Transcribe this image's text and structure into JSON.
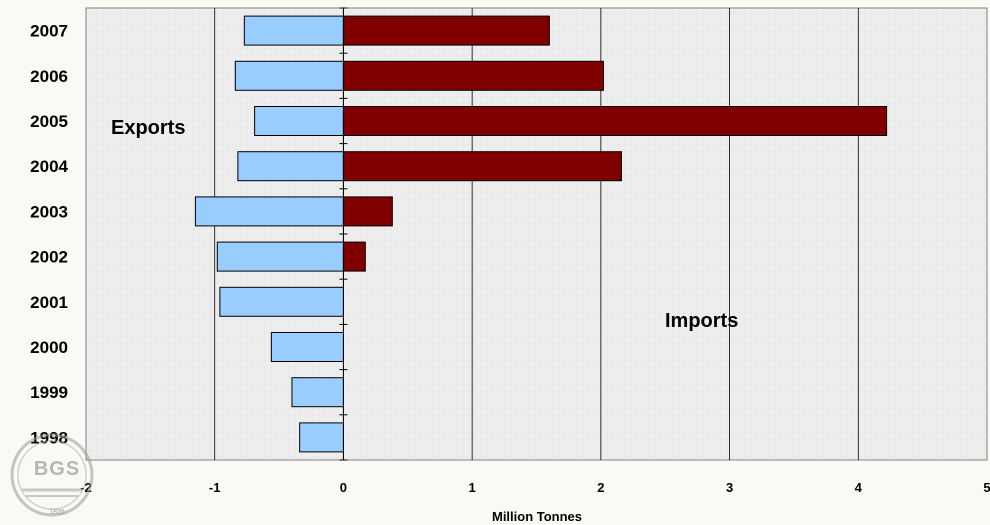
{
  "chart_data": {
    "type": "bar",
    "orientation": "horizontal",
    "categories": [
      "2007",
      "2006",
      "2005",
      "2004",
      "2003",
      "2002",
      "2001",
      "2000",
      "1999",
      "1998"
    ],
    "series": [
      {
        "name": "Exports",
        "values": [
          -0.77,
          -0.84,
          -0.69,
          -0.82,
          -1.15,
          -0.98,
          -0.96,
          -0.56,
          -0.4,
          -0.34
        ],
        "color": "#99ccff"
      },
      {
        "name": "Imports",
        "values": [
          1.6,
          2.02,
          4.22,
          2.16,
          0.38,
          0.17,
          0,
          0,
          0,
          0
        ],
        "color": "#800000"
      }
    ],
    "xlabel": "Million Tonnes",
    "ylabel": "",
    "xlim": [
      -2,
      5
    ],
    "x_ticks": [
      "-2",
      "-1",
      "0",
      "1",
      "2",
      "3",
      "4",
      "5"
    ],
    "grid": "vertical",
    "annotations": {
      "left": "Exports",
      "right": "Imports"
    }
  },
  "logo": {
    "text": "BGS",
    "year": "1835"
  }
}
